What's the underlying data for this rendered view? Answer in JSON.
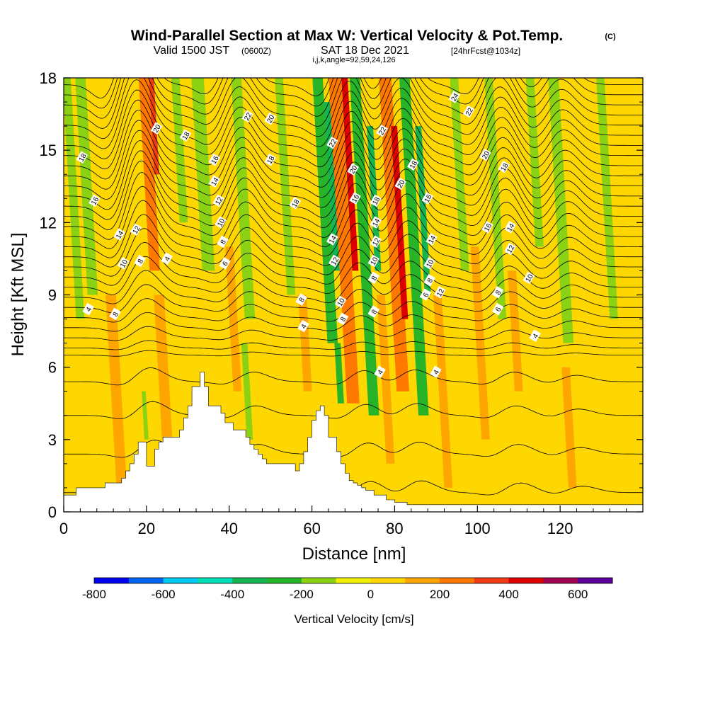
{
  "title": {
    "main": "Wind-Parallel Section at Max W: Vertical Velocity & Pot.Temp.",
    "mark": "(C)",
    "valid_prefix": "Valid 1500 JST",
    "valid_utc": "(0600Z)",
    "valid_date": "SAT 18 Dec 2021",
    "forecast": "[24hrFcst@1034z]",
    "indices": "i,j,k,angle=92,59,24,126"
  },
  "colors": {
    "wband": [
      "#0000f0",
      "#0064f0",
      "#00c8f0",
      "#00dcb4",
      "#14b450",
      "#28b428",
      "#8cd214",
      "#f0f000",
      "#ffd700",
      "#ffa500",
      "#ff7800",
      "#f03c14",
      "#dc0000",
      "#a00050",
      "#5a0096"
    ],
    "terrain": "#ffffff",
    "contour": "#000000"
  },
  "chart_data": {
    "type": "heatmap",
    "xlabel": "Distance [nm]",
    "ylabel": "Height [Kft MSL]",
    "xlim": [
      0,
      140
    ],
    "ylim": [
      0,
      18
    ],
    "xticks": [
      0,
      20,
      40,
      60,
      80,
      100,
      120
    ],
    "yticks": [
      0,
      3,
      6,
      9,
      12,
      15,
      18
    ],
    "colorbar": {
      "label": "Vertical Velocity [cm/s]",
      "boundaries": [
        -800,
        -700,
        -600,
        -500,
        -400,
        -300,
        -200,
        -100,
        0,
        100,
        200,
        300,
        400,
        500,
        600,
        700
      ],
      "tick_values": [
        -800,
        -600,
        -400,
        -200,
        0,
        200,
        400,
        600
      ]
    },
    "vertical_velocity_bands": [
      {
        "x": 4,
        "w": 2,
        "ztop": 18,
        "zbot": 8,
        "value": -150
      },
      {
        "x": 7,
        "w": 2.5,
        "ztop": 18,
        "zbot": 9,
        "value": -150
      },
      {
        "x": 14,
        "w": 2.5,
        "ztop": 9,
        "zbot": 1,
        "value": 150
      },
      {
        "x": 20,
        "w": 1,
        "ztop": 5,
        "zbot": 3,
        "value": -150
      },
      {
        "x": 22,
        "w": 2.5,
        "ztop": 18,
        "zbot": 10,
        "value": 250
      },
      {
        "x": 22.5,
        "w": 1.2,
        "ztop": 18,
        "zbot": 14,
        "value": 350
      },
      {
        "x": 25,
        "w": 2.5,
        "ztop": 9,
        "zbot": 3,
        "value": 150
      },
      {
        "x": 29,
        "w": 2,
        "ztop": 18,
        "zbot": 12,
        "value": -150
      },
      {
        "x": 35,
        "w": 3,
        "ztop": 18,
        "zbot": 10,
        "value": -150
      },
      {
        "x": 42,
        "w": 2,
        "ztop": 11,
        "zbot": 5,
        "value": 150
      },
      {
        "x": 45,
        "w": 2.5,
        "ztop": 18,
        "zbot": 8,
        "value": -150
      },
      {
        "x": 45,
        "w": 1.5,
        "ztop": 7,
        "zbot": 3,
        "value": -150
      },
      {
        "x": 55,
        "w": 2,
        "ztop": 18,
        "zbot": 9,
        "value": -150
      },
      {
        "x": 59,
        "w": 2,
        "ztop": 9,
        "zbot": 5,
        "value": 150
      },
      {
        "x": 65,
        "w": 2.5,
        "ztop": 18,
        "zbot": 7,
        "value": -250
      },
      {
        "x": 66,
        "w": 1.5,
        "ztop": 17,
        "zbot": 10,
        "value": -350
      },
      {
        "x": 67,
        "w": 1.5,
        "ztop": 7,
        "zbot": 4.5,
        "value": -300
      },
      {
        "x": 70,
        "w": 3,
        "ztop": 18,
        "zbot": 4.5,
        "value": 250
      },
      {
        "x": 70.5,
        "w": 1.5,
        "ztop": 18,
        "zbot": 10,
        "value": 400
      },
      {
        "x": 75,
        "w": 2.5,
        "ztop": 18,
        "zbot": 4,
        "value": -250
      },
      {
        "x": 76,
        "w": 1.5,
        "ztop": 16,
        "zbot": 10,
        "value": -350
      },
      {
        "x": 79,
        "w": 2,
        "ztop": 9,
        "zbot": 2,
        "value": 150
      },
      {
        "x": 82,
        "w": 3,
        "ztop": 18,
        "zbot": 5,
        "value": 250
      },
      {
        "x": 82.5,
        "w": 1.5,
        "ztop": 16,
        "zbot": 8,
        "value": 400
      },
      {
        "x": 87,
        "w": 2.5,
        "ztop": 18,
        "zbot": 4,
        "value": -250
      },
      {
        "x": 88,
        "w": 1.5,
        "ztop": 16,
        "zbot": 9,
        "value": -350
      },
      {
        "x": 93,
        "w": 2,
        "ztop": 9,
        "zbot": 1,
        "value": 150
      },
      {
        "x": 97,
        "w": 2,
        "ztop": 18,
        "zbot": 10,
        "value": -150
      },
      {
        "x": 102,
        "w": 2,
        "ztop": 11,
        "zbot": 3,
        "value": 150
      },
      {
        "x": 106,
        "w": 2,
        "ztop": 18,
        "zbot": 8,
        "value": -150
      },
      {
        "x": 110,
        "w": 2,
        "ztop": 10,
        "zbot": 5,
        "value": 150
      },
      {
        "x": 115,
        "w": 2,
        "ztop": 18,
        "zbot": 11,
        "value": -150
      },
      {
        "x": 122,
        "w": 2.5,
        "ztop": 18,
        "zbot": 7,
        "value": -150
      },
      {
        "x": 123,
        "w": 2,
        "ztop": 6,
        "zbot": 1,
        "value": 150
      },
      {
        "x": 133,
        "w": 2,
        "ztop": 18,
        "zbot": 8,
        "value": -150
      }
    ],
    "terrain_profile": {
      "x": [
        0,
        3,
        3,
        10,
        10,
        14,
        14,
        15,
        15,
        16,
        16,
        17,
        17,
        18,
        18,
        19,
        19,
        20,
        20,
        22,
        22,
        23,
        23,
        24,
        24,
        28,
        28,
        29,
        29,
        30,
        30,
        31,
        31,
        33,
        33,
        34,
        34,
        35,
        35,
        37,
        37,
        38,
        38,
        39,
        39,
        41,
        41,
        44,
        44,
        45,
        45,
        46,
        46,
        47,
        47,
        48,
        48,
        49,
        49,
        50,
        50,
        51,
        51,
        52,
        52,
        53,
        53,
        56,
        56,
        57,
        57,
        58,
        58,
        59,
        59,
        60,
        60,
        61,
        61,
        62,
        62,
        63,
        63,
        64,
        64,
        66,
        66,
        67,
        67,
        68,
        68,
        69,
        69,
        70,
        70,
        71,
        71,
        72,
        72,
        73,
        73,
        75,
        75,
        78,
        78,
        80,
        80,
        83,
        83,
        85,
        85,
        140
      ],
      "z": [
        0.7,
        0.7,
        1,
        1,
        1.2,
        1.2,
        1.4,
        1.4,
        1.7,
        1.7,
        2,
        2,
        2.4,
        2.4,
        2.9,
        2.9,
        2.9,
        2.9,
        1.9,
        1.9,
        2.6,
        2.6,
        2.9,
        2.9,
        3.1,
        3.1,
        3.4,
        3.4,
        3.9,
        3.9,
        4.4,
        4.4,
        5.2,
        5.2,
        5.8,
        5.8,
        5.2,
        5.2,
        4.4,
        4.4,
        4.4,
        4.4,
        4.1,
        4.1,
        3.7,
        3.7,
        3.4,
        3.4,
        3.1,
        3.1,
        2.8,
        2.8,
        2.6,
        2.6,
        2.4,
        2.4,
        2.2,
        2.2,
        2.0,
        2.0,
        2.0,
        2.0,
        2.0,
        2.0,
        2.0,
        2.0,
        2.0,
        2.0,
        1.7,
        1.7,
        2.0,
        2.0,
        2.5,
        2.5,
        3.1,
        3.1,
        3.8,
        3.8,
        4.2,
        4.2,
        4.4,
        4.4,
        4.0,
        4.0,
        3.1,
        3.1,
        2.5,
        2.5,
        2.0,
        2.0,
        1.6,
        1.6,
        1.3,
        1.3,
        1.2,
        1.2,
        1.1,
        1.1,
        1.0,
        1.0,
        0.9,
        0.9,
        0.7,
        0.7,
        0.5,
        0.5,
        0.4,
        0.4,
        0.3,
        0.3,
        0.3,
        0.3
      ]
    },
    "potential_temperature": {
      "base_levels": [
        0.8,
        2.4,
        4.0,
        5.4,
        6.5
      ],
      "upper_start": 6.8,
      "upper_spacing": 0.42,
      "upper_count": 27,
      "wave_centers": [
        19,
        44,
        71,
        83,
        107,
        122
      ],
      "wave_amplitudes": [
        2.6,
        1.8,
        2.2,
        2.2,
        1.8,
        1.2
      ]
    },
    "contour_labels": [
      {
        "text": "18",
        "x": 4.5,
        "z": 14.7
      },
      {
        "text": "16",
        "x": 7.5,
        "z": 12.9
      },
      {
        "text": "4",
        "x": 6,
        "z": 8.4
      },
      {
        "text": "14",
        "x": 13.5,
        "z": 11.5
      },
      {
        "text": "10",
        "x": 14.5,
        "z": 10.3
      },
      {
        "text": "8",
        "x": 12.5,
        "z": 8.2
      },
      {
        "text": "12",
        "x": 17.5,
        "z": 11.7
      },
      {
        "text": "8",
        "x": 18.5,
        "z": 10.4
      },
      {
        "text": "4",
        "x": 25,
        "z": 10.5
      },
      {
        "text": "20",
        "x": 22.5,
        "z": 15.9
      },
      {
        "text": "18",
        "x": 29.5,
        "z": 15.6
      },
      {
        "text": "16",
        "x": 36.5,
        "z": 14.6
      },
      {
        "text": "14",
        "x": 36.5,
        "z": 13.7
      },
      {
        "text": "12",
        "x": 37.5,
        "z": 12.9
      },
      {
        "text": "10",
        "x": 38,
        "z": 12.0
      },
      {
        "text": "8",
        "x": 38.5,
        "z": 11.2
      },
      {
        "text": "6",
        "x": 39,
        "z": 10.3
      },
      {
        "text": "22",
        "x": 44.5,
        "z": 16.4
      },
      {
        "text": "20",
        "x": 50,
        "z": 16.3
      },
      {
        "text": "18",
        "x": 50,
        "z": 14.6
      },
      {
        "text": "18",
        "x": 56,
        "z": 12.8
      },
      {
        "text": "8",
        "x": 57.5,
        "z": 8.8
      },
      {
        "text": "4",
        "x": 58,
        "z": 7.7
      },
      {
        "text": "22",
        "x": 65,
        "z": 15.3
      },
      {
        "text": "20",
        "x": 70,
        "z": 14.2
      },
      {
        "text": "16",
        "x": 70.5,
        "z": 13.0
      },
      {
        "text": "14",
        "x": 65,
        "z": 11.3
      },
      {
        "text": "12",
        "x": 65.5,
        "z": 10.4
      },
      {
        "text": "10",
        "x": 67,
        "z": 8.7
      },
      {
        "text": "8",
        "x": 67.5,
        "z": 8.0
      },
      {
        "text": "22",
        "x": 77,
        "z": 15.8
      },
      {
        "text": "18",
        "x": 75.5,
        "z": 12.9
      },
      {
        "text": "14",
        "x": 75.5,
        "z": 12.0
      },
      {
        "text": "12",
        "x": 75.5,
        "z": 11.2
      },
      {
        "text": "10",
        "x": 75,
        "z": 10.4
      },
      {
        "text": "8",
        "x": 75,
        "z": 9.7
      },
      {
        "text": "8",
        "x": 75,
        "z": 8.3
      },
      {
        "text": "4",
        "x": 76.5,
        "z": 5.8
      },
      {
        "text": "20",
        "x": 81.5,
        "z": 13.6
      },
      {
        "text": "18",
        "x": 84.5,
        "z": 14.4
      },
      {
        "text": "16",
        "x": 88,
        "z": 13.0
      },
      {
        "text": "14",
        "x": 89,
        "z": 11.3
      },
      {
        "text": "10",
        "x": 88.5,
        "z": 10.3
      },
      {
        "text": "8",
        "x": 88.5,
        "z": 9.6
      },
      {
        "text": "6",
        "x": 87.5,
        "z": 9.0
      },
      {
        "text": "12",
        "x": 91,
        "z": 9.1
      },
      {
        "text": "4",
        "x": 90,
        "z": 5.8
      },
      {
        "text": "24",
        "x": 94.5,
        "z": 17.2
      },
      {
        "text": "22",
        "x": 98,
        "z": 16.6
      },
      {
        "text": "20",
        "x": 102,
        "z": 14.8
      },
      {
        "text": "18",
        "x": 106.5,
        "z": 14.3
      },
      {
        "text": "16",
        "x": 102.5,
        "z": 11.8
      },
      {
        "text": "14",
        "x": 108,
        "z": 11.8
      },
      {
        "text": "12",
        "x": 108,
        "z": 10.9
      },
      {
        "text": "10",
        "x": 112.5,
        "z": 9.7
      },
      {
        "text": "8",
        "x": 105,
        "z": 9.1
      },
      {
        "text": "6",
        "x": 105,
        "z": 8.4
      },
      {
        "text": "4",
        "x": 114,
        "z": 7.3
      }
    ]
  }
}
